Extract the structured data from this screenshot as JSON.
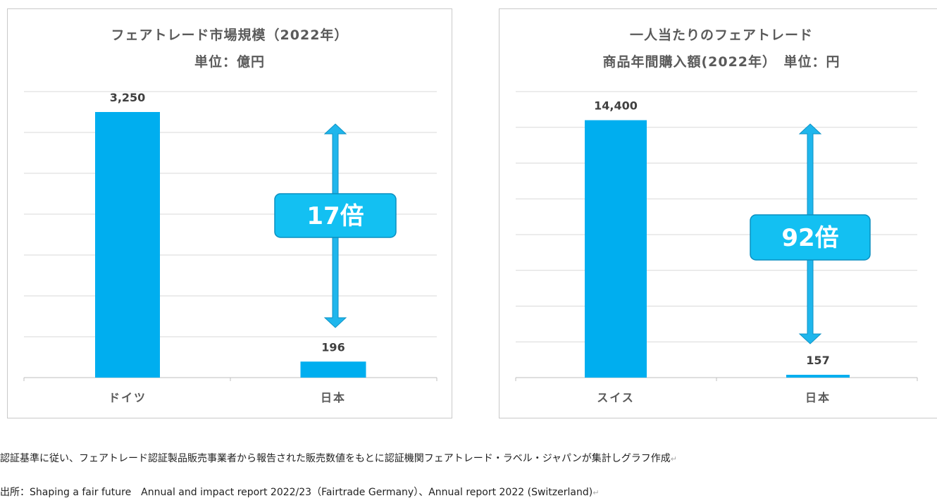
{
  "charts": [
    {
      "title_line1": "フェアトレード市場規模（2022年）",
      "title_line2": "単位：億円",
      "ratio_label": "17倍",
      "colors": {
        "bar": "#00aeef",
        "arrow": "#1fb6ec",
        "box": "#13c0f2",
        "box_border": "#0b8fc0",
        "grid": "#d9d9d9"
      }
    },
    {
      "title_line1": "一人当たりのフェアトレード",
      "title_line2": "商品年間購入額(2022年）　単位：円",
      "ratio_label": "92倍",
      "colors": {
        "bar": "#00aeef",
        "arrow": "#1fb6ec",
        "box": "#13c0f2",
        "box_border": "#0b8fc0",
        "grid": "#d9d9d9"
      }
    }
  ],
  "chart_data": [
    {
      "type": "bar",
      "title": "フェアトレード市場規模（2022年） 単位：億円",
      "categories": [
        "ドイツ",
        "日本"
      ],
      "values": [
        3250,
        196
      ],
      "value_labels": [
        "3,250",
        "196"
      ],
      "ylim": [
        0,
        3500
      ],
      "grid": true,
      "legend": "none"
    },
    {
      "type": "bar",
      "title": "一人当たりのフェアトレード 商品年間購入額(2022年）　単位：円",
      "categories": [
        "スイス",
        "日本"
      ],
      "values": [
        14400,
        157
      ],
      "value_labels": [
        "14,400",
        "157"
      ],
      "ylim": [
        0,
        16000
      ],
      "grid": true,
      "legend": "none"
    }
  ],
  "footnotes": {
    "note1": "認証基準に従い、フェアトレード認証製品販売事業者から報告された販売数値をもとに認証機関フェアトレード・ラベル・ジャパンが集計しグラフ作成",
    "note2": "出所：Shaping a fair future　Annual and impact report 2022/23（Fairtrade Germany）、Annual report 2022 (Switzerland)",
    "return_mark": "↵"
  }
}
